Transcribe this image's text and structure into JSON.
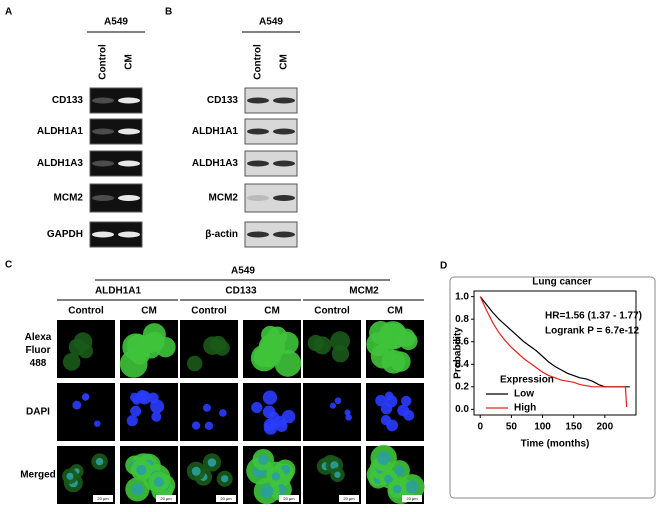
{
  "panels": {
    "a": {
      "label": "A",
      "cell_line": "A549",
      "lanes": [
        "Control",
        "CM"
      ],
      "rows": [
        "CD133",
        "ALDH1A1",
        "ALDH1A3",
        "MCM2",
        "GAPDH"
      ]
    },
    "b": {
      "label": "B",
      "cell_line": "A549",
      "lanes": [
        "Control",
        "CM"
      ],
      "rows": [
        "CD133",
        "ALDH1A1",
        "ALDH1A3",
        "MCM2",
        "β-actin"
      ]
    },
    "c": {
      "label": "C",
      "cell_line": "A549",
      "markers": [
        "ALDH1A1",
        "CD133",
        "MCM2"
      ],
      "conditions": [
        "Control",
        "CM"
      ],
      "channels": [
        "Alexa Fluor 488",
        "DAPI",
        "Merged"
      ],
      "scale_bar": "20 μm"
    }
  },
  "chart_data": {
    "type": "line",
    "panel_label": "D",
    "title": "Lung cancer",
    "annotations": [
      "HR=1.56 (1.37 - 1.77)",
      "Logrank P = 6.7e-12"
    ],
    "x_label": "Time (months)",
    "y_label": "Probability",
    "legend_title": "Expression",
    "series": [
      {
        "name": "Low",
        "color": "#000000",
        "x": [
          0,
          10,
          20,
          30,
          40,
          50,
          60,
          70,
          80,
          90,
          100,
          110,
          120,
          130,
          140,
          150,
          160,
          170,
          180,
          190,
          200,
          220,
          240
        ],
        "values": [
          1,
          0.93,
          0.86,
          0.8,
          0.75,
          0.7,
          0.65,
          0.6,
          0.56,
          0.52,
          0.47,
          0.42,
          0.38,
          0.35,
          0.32,
          0.3,
          0.28,
          0.27,
          0.25,
          0.22,
          0.2,
          0.2,
          0.2
        ]
      },
      {
        "name": "High",
        "color": "#e8201c",
        "x": [
          0,
          10,
          20,
          30,
          40,
          50,
          60,
          70,
          80,
          90,
          100,
          110,
          120,
          130,
          140,
          150,
          160,
          170,
          180,
          200,
          220,
          233,
          235
        ],
        "values": [
          1,
          0.88,
          0.77,
          0.68,
          0.61,
          0.55,
          0.5,
          0.45,
          0.41,
          0.37,
          0.33,
          0.3,
          0.28,
          0.26,
          0.25,
          0.24,
          0.22,
          0.21,
          0.2,
          0.2,
          0.2,
          0.2,
          0.02
        ]
      }
    ],
    "xlim": [
      -10,
      250
    ],
    "ylim": [
      -0.05,
      1.05
    ],
    "xticks": [
      0,
      50,
      100,
      150,
      200
    ],
    "yticks": [
      {
        "value": 0,
        "label": "0.0"
      },
      0.2,
      0.4,
      0.6,
      0.8,
      {
        "value": 1,
        "label": "1.0"
      }
    ]
  }
}
